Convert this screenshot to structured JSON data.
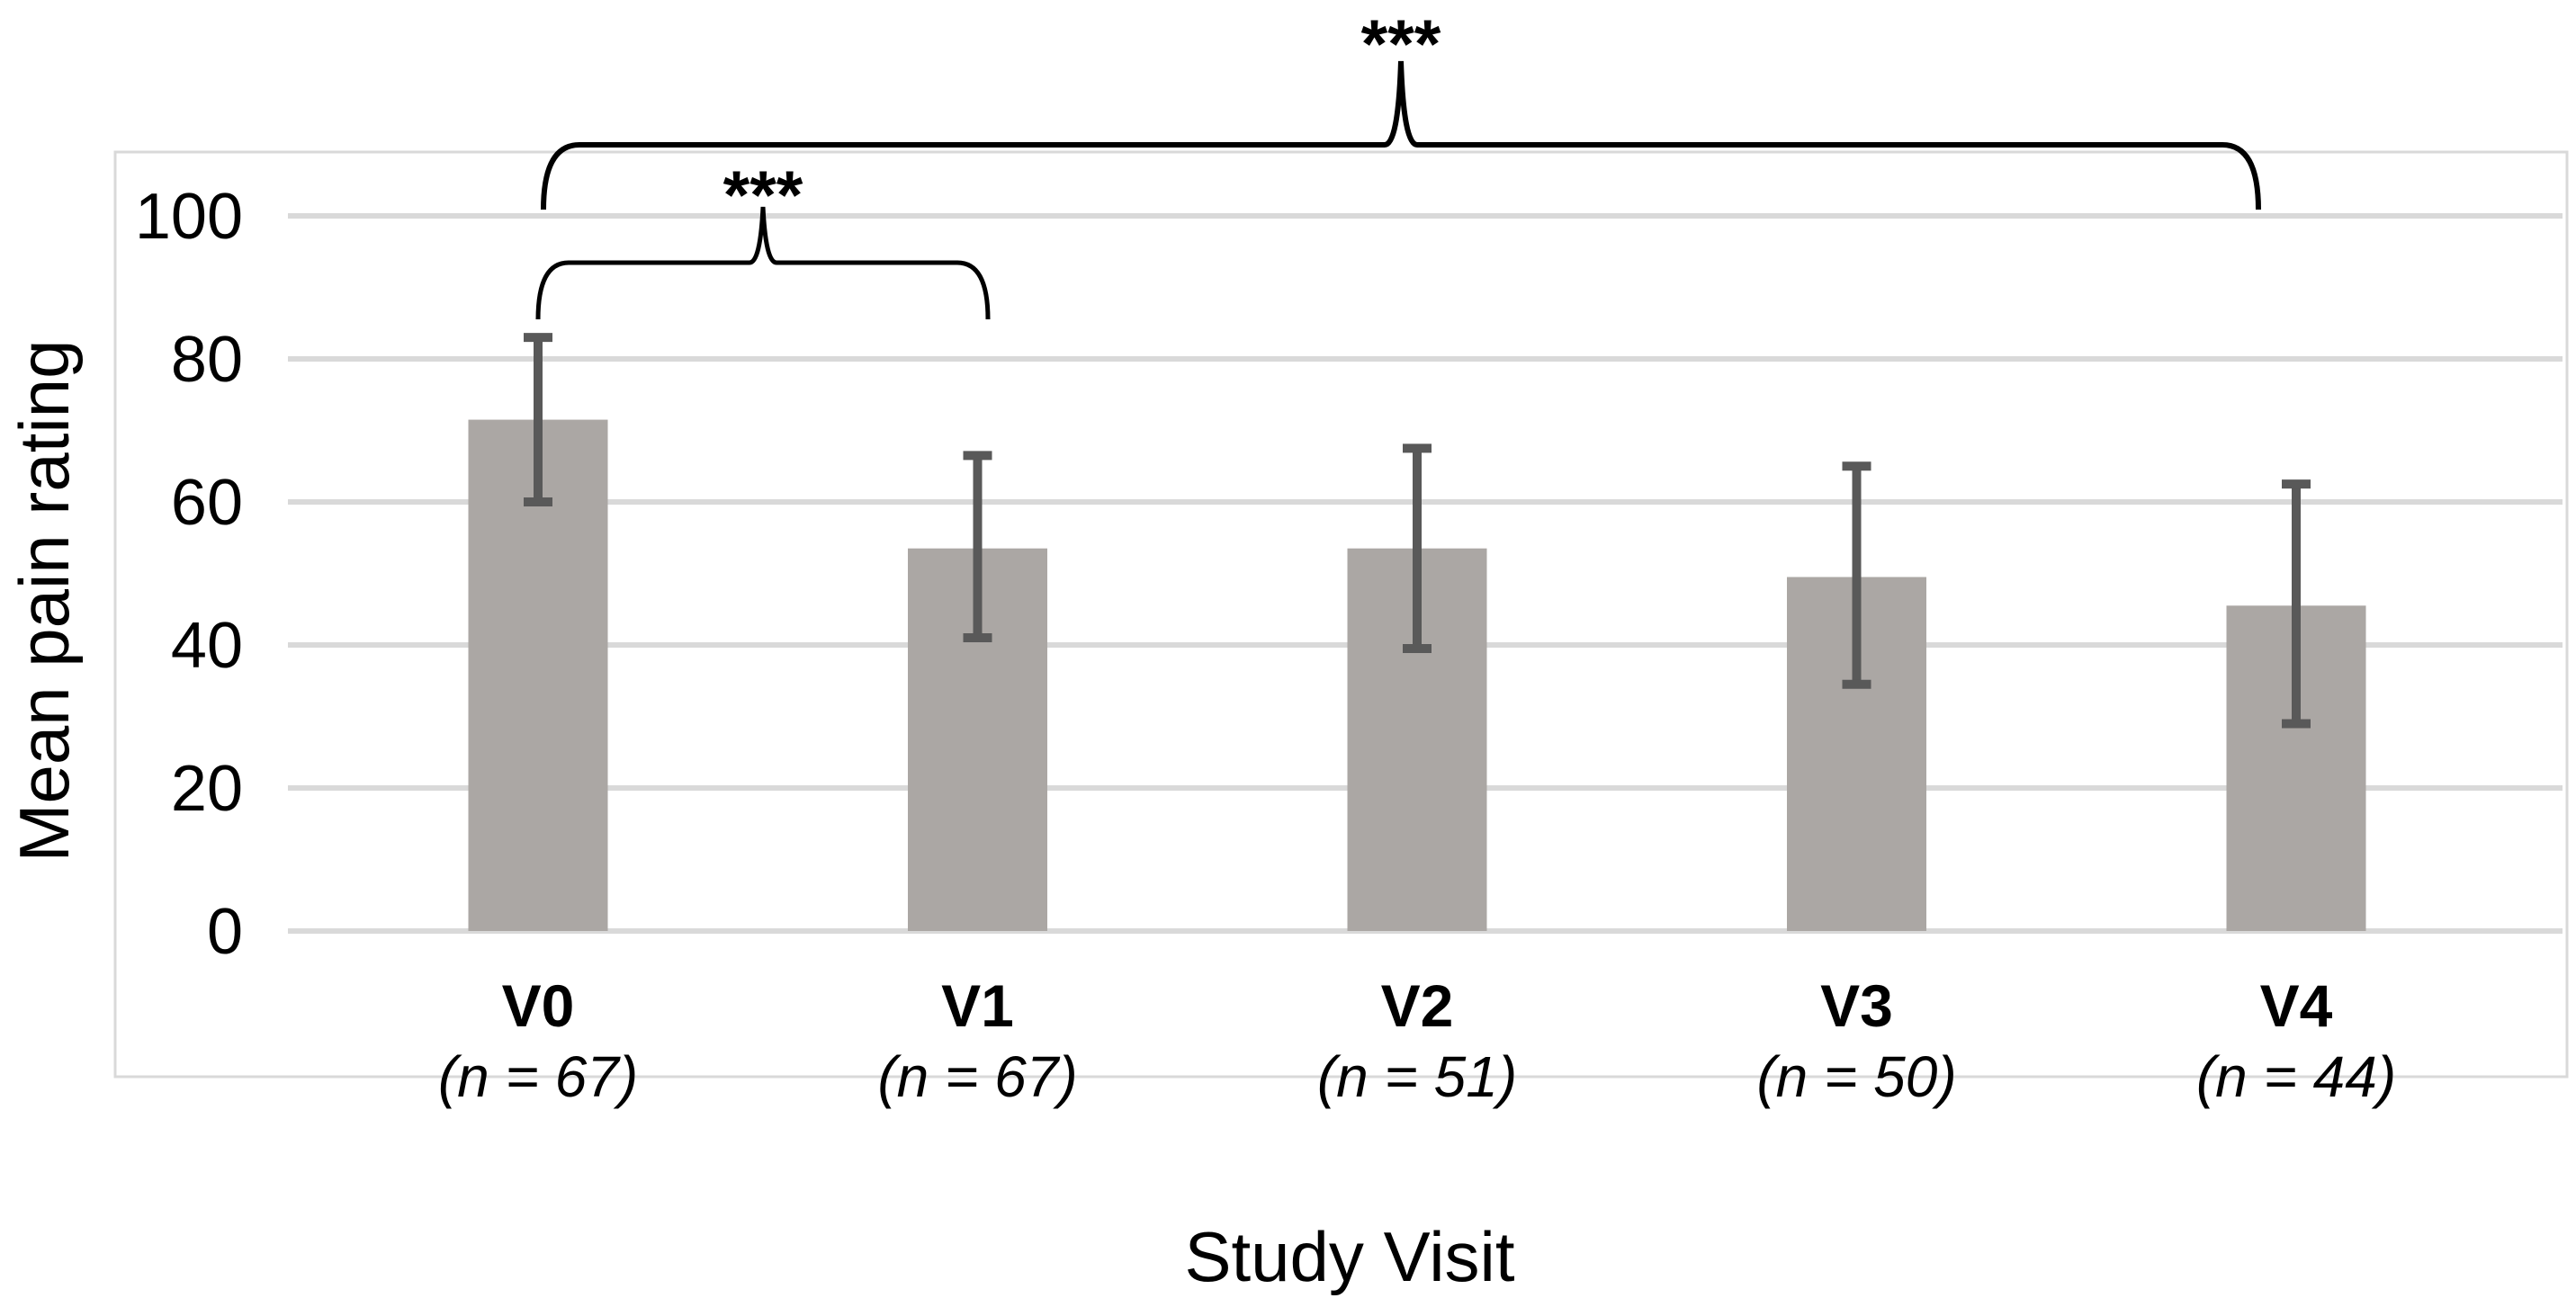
{
  "chart_data": {
    "type": "bar",
    "categories": [
      "V0",
      "V1",
      "V2",
      "V3",
      "V4"
    ],
    "sublabels": [
      "(n = 67)",
      "(n = 67)",
      "(n = 51)",
      "(n = 50)",
      "(n = 44)"
    ],
    "n": [
      67,
      67,
      51,
      50,
      44
    ],
    "values": [
      71.5,
      53.5,
      53.5,
      49.5,
      45.5
    ],
    "error_high": [
      83,
      66.5,
      67.5,
      65,
      62.5
    ],
    "error_low": [
      60,
      41,
      39.5,
      34.5,
      29
    ],
    "ylabel": "Mean pain rating",
    "xlabel": "Study Visit",
    "ylim": [
      0,
      100
    ],
    "yticks": [
      "0",
      "20",
      "40",
      "60",
      "80",
      "100"
    ],
    "ytick_values": [
      0,
      20,
      40,
      60,
      80,
      100
    ],
    "grid": true,
    "legend": "none",
    "bar_color": "#ABA7A4",
    "error_color": "#595959",
    "gridline_color": "#D9D9D9",
    "chart_border_color": "#D9D9D9",
    "bracket_color": "#000000"
  },
  "significance": [
    {
      "from": "V0",
      "to": "V1",
      "label": "***"
    },
    {
      "from": "V0",
      "to": "V4",
      "label": "***"
    }
  ]
}
